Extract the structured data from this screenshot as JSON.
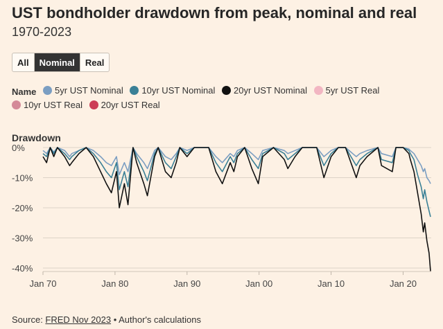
{
  "title": "UST bondholder drawdown from peak, nominal and real",
  "subtitle": "1970-2023",
  "toggle": {
    "options": [
      "All",
      "Nominal",
      "Real"
    ],
    "selected": "Nominal"
  },
  "legend": {
    "title": "Name",
    "items": [
      {
        "label": "5yr UST Nominal",
        "color": "#7b9ec2"
      },
      {
        "label": "10yr UST Nominal",
        "color": "#3a8096"
      },
      {
        "label": "20yr UST Nominal",
        "color": "#111111"
      },
      {
        "label": "5yr UST Real",
        "color": "#f2b6c2"
      },
      {
        "label": "10yr UST Real",
        "color": "#d48a98"
      },
      {
        "label": "20yr UST Real",
        "color": "#cc3d55"
      }
    ]
  },
  "footer": {
    "prefix": "Source: ",
    "link": "FRED Nov 2023",
    "suffix": " • Author's calculations"
  },
  "chart_data": {
    "type": "line",
    "ylabel": "Drawdown",
    "xlim": [
      1970,
      2023.9
    ],
    "ylim": [
      -45,
      0
    ],
    "x_ticks": [
      1970,
      1980,
      1990,
      2000,
      2010,
      2020
    ],
    "x_tick_labels": [
      "Jan 70",
      "Jan 80",
      "Jan 90",
      "Jan 00",
      "Jan 10",
      "Jan 20"
    ],
    "y_ticks": [
      0,
      -10,
      -20,
      -30,
      -40
    ],
    "y_tick_labels": [
      "0%",
      "-10%",
      "-20%",
      "-30%",
      "-40%"
    ],
    "grid": "horizontal",
    "series": [
      {
        "name": "5yr UST Nominal",
        "color": "#7b9ec2",
        "x": [
          1970,
          1970.5,
          1971,
          1971.5,
          1972,
          1973,
          1973.7,
          1974,
          1975,
          1976,
          1977,
          1978,
          1978.8,
          1979.5,
          1980.2,
          1980.6,
          1981.3,
          1981.8,
          1982.5,
          1983,
          1984,
          1984.5,
          1985.5,
          1986,
          1987,
          1987.8,
          1988.5,
          1989,
          1990,
          1991,
          1993,
          1994,
          1994.9,
          1996,
          1996.5,
          1997,
          1998,
          1999,
          1999.9,
          2000.5,
          2002,
          2003.5,
          2004,
          2005,
          2006,
          2008,
          2009,
          2010,
          2011,
          2012,
          2013.5,
          2014,
          2015,
          2016.5,
          2017,
          2018.5,
          2019,
          2020,
          2020.8,
          2021,
          2021.5,
          2022,
          2022.5,
          2022.8,
          2023,
          2023.3,
          2023.6,
          2023.8
        ],
        "y": [
          -1,
          -2,
          0,
          -1.5,
          0,
          -1,
          -3,
          -2,
          -1,
          0,
          -1,
          -3,
          -5,
          -6,
          -3,
          -9,
          -5,
          -8,
          0,
          -2,
          -5,
          -7,
          -1,
          0,
          -3,
          -4,
          -2,
          0,
          -1,
          0,
          0,
          -3,
          -5,
          -2,
          -3,
          -1,
          0,
          -2,
          -4,
          -1,
          0,
          -1,
          -2,
          -1,
          0,
          0,
          -3,
          -1,
          0,
          0,
          -3,
          -2,
          -1,
          0,
          -2,
          -3,
          0,
          0,
          -0.5,
          -1,
          -2,
          -4,
          -6,
          -8,
          -7,
          -10,
          -11,
          -12
        ]
      },
      {
        "name": "10yr UST Nominal",
        "color": "#3a8096",
        "x": [
          1970,
          1970.5,
          1971,
          1971.5,
          1972,
          1973,
          1973.7,
          1974,
          1975,
          1976,
          1977,
          1978,
          1978.8,
          1979.5,
          1980.2,
          1980.6,
          1981.3,
          1981.8,
          1982.5,
          1983,
          1984,
          1984.5,
          1985.5,
          1986,
          1987,
          1987.8,
          1988.5,
          1989,
          1990,
          1991,
          1993,
          1994,
          1994.9,
          1996,
          1996.5,
          1997,
          1998,
          1999,
          1999.9,
          2000.5,
          2002,
          2003.5,
          2004,
          2005,
          2006,
          2008,
          2009,
          2010,
          2011,
          2012,
          2013.5,
          2014,
          2015,
          2016.5,
          2017,
          2018.5,
          2019,
          2020,
          2020.8,
          2021,
          2021.5,
          2022,
          2022.5,
          2022.8,
          2023,
          2023.3,
          2023.6,
          2023.8
        ],
        "y": [
          -2,
          -3,
          0,
          -2,
          0,
          -2,
          -4,
          -3,
          -1,
          0,
          -2,
          -5,
          -8,
          -10,
          -5,
          -14,
          -8,
          -13,
          0,
          -3,
          -8,
          -11,
          -2,
          0,
          -5,
          -7,
          -3,
          0,
          -2,
          0,
          0,
          -5,
          -8,
          -3,
          -5,
          -2,
          0,
          -4,
          -7,
          -2,
          0,
          -2,
          -4,
          -2,
          0,
          0,
          -6,
          -2,
          0,
          0,
          -6,
          -4,
          -2,
          0,
          -4,
          -5,
          0,
          0,
          -1,
          -2,
          -4,
          -9,
          -13,
          -17,
          -14,
          -18,
          -21,
          -23
        ]
      },
      {
        "name": "20yr UST Nominal",
        "color": "#111111",
        "x": [
          1970,
          1970.5,
          1971,
          1971.5,
          1972,
          1973,
          1973.7,
          1974,
          1975,
          1976,
          1977,
          1978,
          1978.8,
          1979.5,
          1980.2,
          1980.6,
          1981.3,
          1981.8,
          1982.5,
          1983,
          1984,
          1984.5,
          1985.5,
          1986,
          1987,
          1987.8,
          1988.5,
          1989,
          1990,
          1991,
          1993,
          1994,
          1994.9,
          1996,
          1996.5,
          1997,
          1998,
          1999,
          1999.9,
          2000.5,
          2002,
          2003.5,
          2004,
          2005,
          2006,
          2008,
          2009,
          2010,
          2011,
          2012,
          2013.5,
          2014,
          2015,
          2016.5,
          2017,
          2018.5,
          2019,
          2020,
          2020.8,
          2021,
          2021.5,
          2022,
          2022.5,
          2022.8,
          2023,
          2023.3,
          2023.6,
          2023.8
        ],
        "y": [
          -3,
          -5,
          0,
          -3,
          0,
          -3,
          -6,
          -5,
          -2,
          0,
          -3,
          -8,
          -12,
          -15,
          -8,
          -20,
          -12,
          -19,
          0,
          -5,
          -12,
          -16,
          -3,
          0,
          -8,
          -10,
          -5,
          0,
          -3,
          0,
          0,
          -8,
          -12,
          -5,
          -8,
          -3,
          0,
          -7,
          -12,
          -3,
          0,
          -4,
          -7,
          -3,
          0,
          0,
          -10,
          -3,
          0,
          0,
          -10,
          -6,
          -3,
          0,
          -6,
          -8,
          0,
          0,
          -2,
          -4,
          -8,
          -15,
          -22,
          -28,
          -25,
          -31,
          -35,
          -41
        ]
      }
    ]
  }
}
